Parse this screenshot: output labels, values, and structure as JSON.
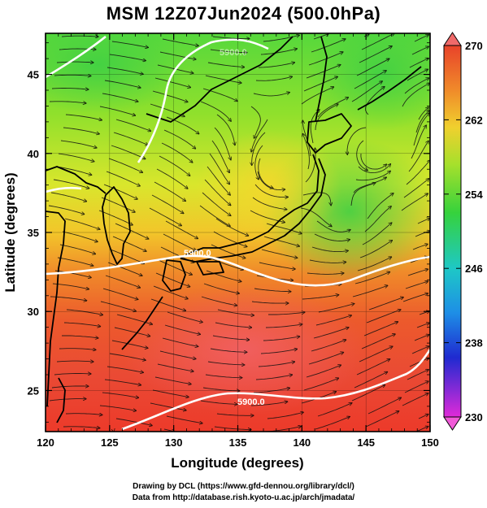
{
  "title": "MSM 12Z07Jun2024 (500.0hPa)",
  "credits": {
    "line1": "Drawing by DCL (https://www.gfd-dennou.org/library/dcl/)",
    "line2": "Data from http://database.rish.kyoto-u.ac.jp/arch/jmadata/"
  },
  "map": {
    "region": "Japan and surrounding seas",
    "lon_range": [
      120,
      150
    ],
    "lat_range": [
      22.4,
      47.6
    ],
    "xlabel": "Longitude (degrees)",
    "ylabel": "Latitude  (degrees)",
    "x_ticks": [
      120,
      125,
      130,
      135,
      140,
      145,
      150
    ],
    "y_ticks": [
      25,
      30,
      35,
      40,
      45
    ],
    "shaded_field_color_range": [
      230,
      270
    ],
    "streamlines": true,
    "grid": true
  },
  "colorbar": {
    "min": 230,
    "max": 270,
    "ticks": [
      270,
      262,
      254,
      246,
      238,
      230
    ],
    "extend": "both"
  },
  "contours": [
    {
      "label": "5900.0",
      "value": 5900.0
    },
    {
      "label": "5900.0",
      "value": 5900.0
    },
    {
      "label": "5900.0",
      "value": 5900.0
    }
  ],
  "colors": {
    "warm": "#e8432a",
    "mid": "#f0d02e",
    "green": "#4fd23c",
    "cyan": "#1ec8e6",
    "blue": "#1f2ad0",
    "magenta": "#e02ad8"
  }
}
